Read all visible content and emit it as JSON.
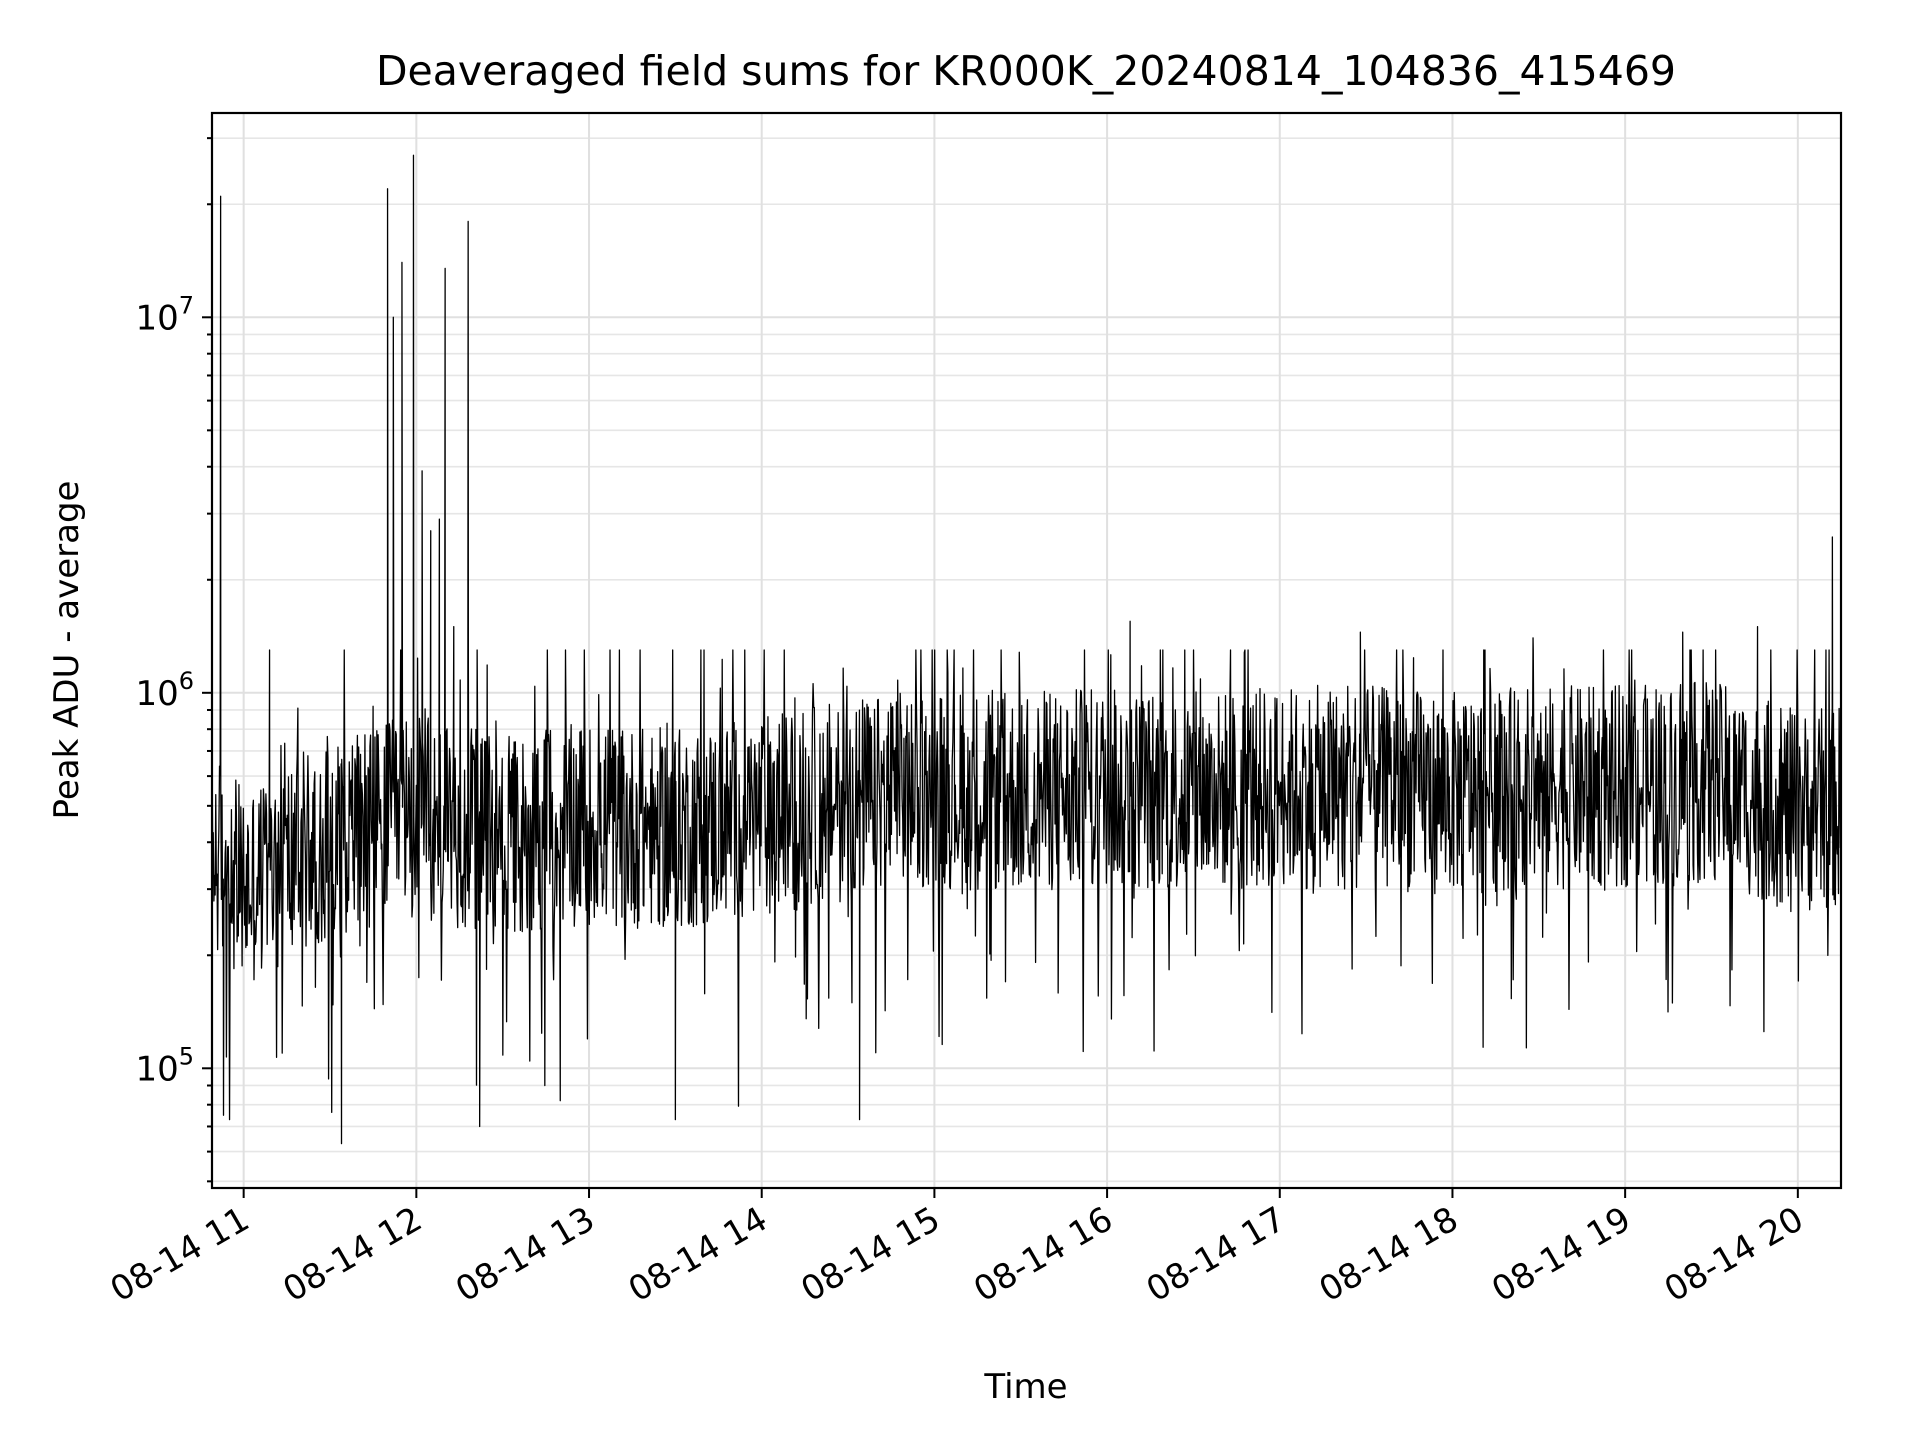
{
  "chart_data": {
    "type": "line",
    "title": "Deaveraged field sums for KR000K_20240814_104836_415469",
    "xlabel": "Time",
    "ylabel": "Peak ADU - average",
    "y_scale": "log",
    "ylim": [
      48000,
      35000000
    ],
    "xlim": [
      "2024-08-14T10:49:00",
      "2024-08-14T20:15:00"
    ],
    "grid": true,
    "y_ticks": [
      {
        "value": 100000,
        "base": "10",
        "exp": "5"
      },
      {
        "value": 1000000,
        "base": "10",
        "exp": "6"
      },
      {
        "value": 10000000,
        "base": "10",
        "exp": "7"
      }
    ],
    "x_ticks": [
      {
        "value": "2024-08-14T11:00:00",
        "label": "08-14 11"
      },
      {
        "value": "2024-08-14T12:00:00",
        "label": "08-14 12"
      },
      {
        "value": "2024-08-14T13:00:00",
        "label": "08-14 13"
      },
      {
        "value": "2024-08-14T14:00:00",
        "label": "08-14 14"
      },
      {
        "value": "2024-08-14T15:00:00",
        "label": "08-14 15"
      },
      {
        "value": "2024-08-14T16:00:00",
        "label": "08-14 16"
      },
      {
        "value": "2024-08-14T17:00:00",
        "label": "08-14 17"
      },
      {
        "value": "2024-08-14T18:00:00",
        "label": "08-14 18"
      },
      {
        "value": "2024-08-14T19:00:00",
        "label": "08-14 19"
      },
      {
        "value": "2024-08-14T20:00:00",
        "label": "08-14 20"
      }
    ],
    "series": [
      {
        "color": "#000000",
        "baseline": [
          [
            "2024-08-14T10:49:00",
            380000
          ],
          [
            "2024-08-14T11:00:00",
            300000
          ],
          [
            "2024-08-14T11:30:00",
            420000
          ],
          [
            "2024-08-14T12:00:00",
            470000
          ],
          [
            "2024-08-14T12:30:00",
            410000
          ],
          [
            "2024-08-14T13:00:00",
            450000
          ],
          [
            "2024-08-14T13:30:00",
            430000
          ],
          [
            "2024-08-14T14:00:00",
            470000
          ],
          [
            "2024-08-14T14:30:00",
            520000
          ],
          [
            "2024-08-14T15:00:00",
            560000
          ],
          [
            "2024-08-14T15:30:00",
            540000
          ],
          [
            "2024-08-14T16:00:00",
            560000
          ],
          [
            "2024-08-14T16:30:00",
            540000
          ],
          [
            "2024-08-14T17:00:00",
            560000
          ],
          [
            "2024-08-14T17:30:00",
            560000
          ],
          [
            "2024-08-14T18:00:00",
            540000
          ],
          [
            "2024-08-14T18:30:00",
            560000
          ],
          [
            "2024-08-14T19:00:00",
            560000
          ],
          [
            "2024-08-14T19:30:00",
            580000
          ],
          [
            "2024-08-14T20:00:00",
            480000
          ],
          [
            "2024-08-14T20:15:00",
            500000
          ]
        ],
        "spikes": [
          [
            "2024-08-14T10:52:00",
            21000000
          ],
          [
            "2024-08-14T10:53:00",
            75000
          ],
          [
            "2024-08-14T11:09:00",
            1300000
          ],
          [
            "2024-08-14T11:34:00",
            63000
          ],
          [
            "2024-08-14T11:50:00",
            22000000
          ],
          [
            "2024-08-14T11:52:00",
            10000000
          ],
          [
            "2024-08-14T11:55:00",
            14000000
          ],
          [
            "2024-08-14T11:59:00",
            27000000
          ],
          [
            "2024-08-14T12:02:00",
            3900000
          ],
          [
            "2024-08-14T12:05:00",
            2700000
          ],
          [
            "2024-08-14T12:08:00",
            2900000
          ],
          [
            "2024-08-14T12:10:00",
            13500000
          ],
          [
            "2024-08-14T12:13:00",
            1500000
          ],
          [
            "2024-08-14T12:18:00",
            18000000
          ],
          [
            "2024-08-14T12:22:00",
            70000
          ],
          [
            "2024-08-14T12:50:00",
            82000
          ],
          [
            "2024-08-14T13:30:00",
            73000
          ],
          [
            "2024-08-14T14:34:00",
            73000
          ],
          [
            "2024-08-14T16:08:00",
            1550000
          ],
          [
            "2024-08-14T17:28:00",
            1450000
          ],
          [
            "2024-08-14T18:28:00",
            1400000
          ],
          [
            "2024-08-14T19:20:00",
            1450000
          ],
          [
            "2024-08-14T19:46:00",
            1500000
          ],
          [
            "2024-08-14T20:12:00",
            2600000
          ]
        ]
      }
    ]
  }
}
